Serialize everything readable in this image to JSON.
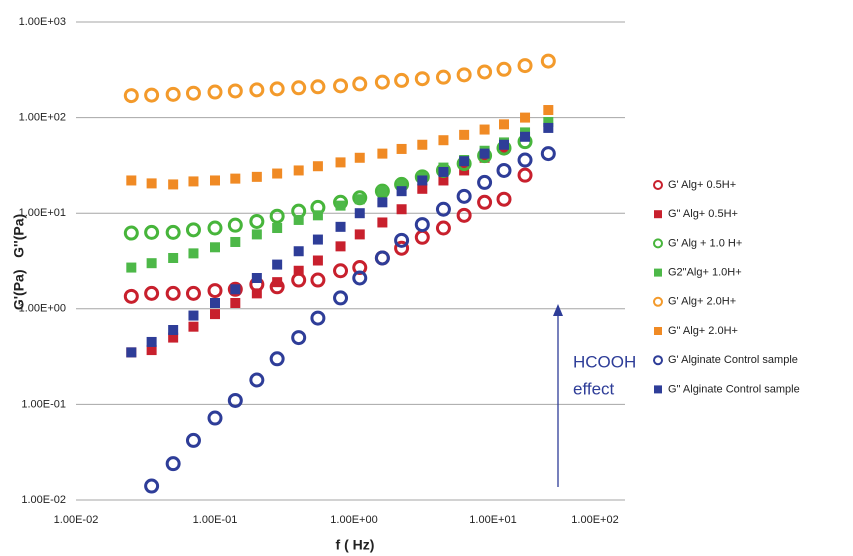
{
  "chart_data": {
    "type": "scatter",
    "x_label": "f ( Hz)",
    "y_label": "G'(Pa)   G''(Pa)",
    "x_log": true,
    "y_log": true,
    "grid": true,
    "legend": "right",
    "xlim": [
      0.01,
      100
    ],
    "xticks": [
      {
        "value": 0.01,
        "label": "1.00E-02"
      },
      {
        "value": 0.1,
        "label": "1.00E-01"
      },
      {
        "value": 1,
        "label": "1.00E+00"
      },
      {
        "value": 10,
        "label": "1.00E+01"
      },
      {
        "value": 100,
        "label": "1.00E+02"
      }
    ],
    "ylim": [
      0.01,
      1000
    ],
    "yticks": [
      {
        "value": 0.01,
        "label": "1.00E-02"
      },
      {
        "value": 0.1,
        "label": "1.00E-01"
      },
      {
        "value": 1,
        "label": "1.00E+00"
      },
      {
        "value": 10,
        "label": "1.00E+01"
      },
      {
        "value": 100,
        "label": "1.00E+02"
      },
      {
        "value": 1000,
        "label": "1.00E+03"
      }
    ],
    "x": [
      0.025,
      0.035,
      0.05,
      0.07,
      0.1,
      0.14,
      0.2,
      0.28,
      0.4,
      0.55,
      0.8,
      1.1,
      1.6,
      2.2,
      3.1,
      4.4,
      6.2,
      8.7,
      12,
      17,
      25
    ],
    "series": [
      {
        "name": "G' Alg+ 0.5H+",
        "color": "#c8202d",
        "marker": "circle",
        "values": [
          1.35,
          1.45,
          1.45,
          1.45,
          1.55,
          1.6,
          1.8,
          1.7,
          2.0,
          2.0,
          2.5,
          2.7,
          3.4,
          4.3,
          5.6,
          7.0,
          9.5,
          13,
          14,
          25,
          null
        ]
      },
      {
        "name": "G\" Alg+ 0.5H+",
        "color": "#c8202d",
        "marker": "square",
        "values": [
          0.35,
          0.37,
          0.5,
          0.65,
          0.88,
          1.15,
          1.45,
          1.9,
          2.5,
          3.2,
          4.5,
          6,
          8,
          11,
          18,
          22,
          28,
          38,
          48,
          null,
          null
        ]
      },
      {
        "name": "G' Alg + 1.0 H+",
        "color": "#47b53b",
        "marker": "circle",
        "values": [
          6.2,
          6.3,
          6.3,
          6.7,
          7.0,
          7.5,
          8.2,
          9.3,
          10.5,
          11.5,
          13,
          14.5,
          17,
          20,
          24,
          28,
          33,
          40,
          48,
          56,
          null
        ]
      },
      {
        "name": "G2\"Alg+ 1.0H+",
        "color": "#4db848",
        "marker": "square",
        "values": [
          2.7,
          3.0,
          3.4,
          3.8,
          4.4,
          5.0,
          6.0,
          7.0,
          8.5,
          9.5,
          12,
          14,
          17,
          20,
          24,
          30,
          36,
          45,
          55,
          70,
          90
        ]
      },
      {
        "name": "G' Alg+ 2.0H+",
        "color": "#f39a2b",
        "marker": "circle",
        "values": [
          170,
          172,
          175,
          180,
          185,
          190,
          195,
          200,
          205,
          210,
          215,
          225,
          235,
          245,
          255,
          265,
          280,
          300,
          320,
          350,
          390
        ]
      },
      {
        "name": "G\" Alg+ 2.0H+",
        "color": "#f08a24",
        "marker": "square",
        "values": [
          22,
          20.5,
          20,
          21.5,
          22,
          23,
          24,
          26,
          28,
          31,
          34,
          38,
          42,
          47,
          52,
          58,
          66,
          75,
          85,
          100,
          120
        ]
      },
      {
        "name": "G' Alginate Control sample",
        "color": "#2e3d98",
        "marker": "circle",
        "values": [
          null,
          0.014,
          0.024,
          0.042,
          0.072,
          0.11,
          0.18,
          0.3,
          0.5,
          0.8,
          1.3,
          2.1,
          3.4,
          5.2,
          7.6,
          11,
          15,
          21,
          28,
          36,
          42
        ]
      },
      {
        "name": "G\" Alginate Control sample",
        "color": "#2e3d98",
        "marker": "square",
        "values": [
          0.35,
          0.45,
          0.6,
          0.85,
          1.15,
          1.6,
          2.1,
          2.9,
          4,
          5.3,
          7.2,
          10,
          13,
          17,
          22,
          27,
          35,
          42,
          52,
          63,
          78
        ]
      }
    ],
    "annotation": [
      "HCOOH",
      "effect"
    ]
  }
}
